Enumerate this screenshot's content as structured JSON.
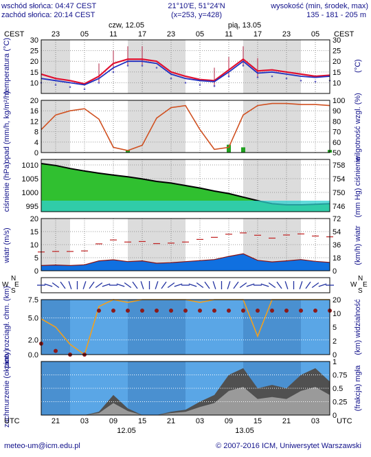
{
  "header": {
    "sunrise": "wschód słońca: 04:47 CEST",
    "sunset": "zachód słońca: 20:14 CEST",
    "coords": "21°10'E, 51°24'N",
    "grid": "(x=253, y=428)",
    "alt_title": "wysokość (min, środek, max)",
    "alt_values": "135 - 181 - 205 m",
    "tz_left": "CEST",
    "tz_right": "CEST",
    "day1": "czw, 12.05",
    "day2": "pią, 13.05",
    "top_hours": [
      "23",
      "05",
      "11",
      "17",
      "23",
      "05",
      "11",
      "17",
      "23",
      "05"
    ]
  },
  "footer": {
    "tz_left": "UTC",
    "tz_right": "UTC",
    "hours": [
      "21",
      "03",
      "09",
      "15",
      "21",
      "03",
      "09",
      "15",
      "21",
      "03"
    ],
    "date1": "12.05",
    "date2": "13.05",
    "email": "meteo-um@icm.edu.pl",
    "copyright": "© 2007-2016 ICM, Uniwersytet Warszawski"
  },
  "labels": {
    "temp_left": "temperatura (°C)",
    "temp_right": "(°C)",
    "precip_left": "opad (mm/h, kg/m²/h)",
    "precip_right": "wilgotność wzgl. (%)",
    "press_left": "ciśnienie (hPa)",
    "press_right": "(mm Hg) ciśnienie",
    "wind_left": "wiatr (m/s)",
    "wind_right": "(km/h) wiatr",
    "vis_left": "pion. rozciągł. chm. (km)",
    "vis_right": "(km) widzialność",
    "cloud_left": "zachmurzenie (oktanty)",
    "cloud_right": "(frakcja) mgła"
  },
  "chart_data": [
    {
      "type": "line",
      "panel": "temperature",
      "ylim": [
        5,
        30
      ],
      "yticks": [
        10,
        15,
        20,
        25,
        30
      ],
      "yticks_right": [
        10,
        15,
        20,
        25,
        30
      ],
      "x": [
        0,
        3,
        6,
        9,
        12,
        15,
        18,
        21,
        24,
        27,
        30,
        33,
        36,
        39,
        42,
        45,
        48,
        51,
        54,
        57,
        60
      ],
      "series": [
        {
          "key": "temp",
          "color": "#e01030",
          "values": [
            14,
            12,
            11,
            9.5,
            13,
            19,
            21,
            21,
            20,
            15,
            13,
            11.5,
            11,
            16,
            21,
            15.5,
            16,
            15,
            14,
            13,
            13.5
          ]
        },
        {
          "key": "dew",
          "color": "#2030c0",
          "values": [
            12,
            11,
            10,
            9,
            12,
            17,
            20,
            20,
            19,
            14,
            12,
            11,
            10.5,
            15,
            20,
            14.5,
            15,
            14,
            13,
            12.5,
            13
          ]
        }
      ]
    },
    {
      "type": "area",
      "panel": "precipitation_humidity",
      "ylim_left": [
        0,
        20
      ],
      "yticks_left": [
        0,
        4,
        8,
        12,
        16,
        20
      ],
      "ylim_right": [
        50,
        100
      ],
      "yticks_right": [
        50,
        60,
        70,
        80,
        90,
        100
      ],
      "x": [
        0,
        3,
        6,
        9,
        12,
        15,
        18,
        21,
        24,
        27,
        30,
        33,
        36,
        39,
        42,
        45,
        48,
        51,
        54,
        57,
        60
      ],
      "humidity": [
        72,
        86,
        90,
        92,
        82,
        55,
        52,
        57,
        83,
        93,
        95,
        72,
        53,
        55,
        86,
        95,
        97,
        97,
        96,
        96,
        95
      ],
      "precip": [
        0,
        0,
        0,
        0,
        0,
        0,
        1,
        0,
        0,
        0,
        0,
        0,
        0,
        3,
        2,
        0,
        0,
        0,
        0,
        0,
        1
      ]
    },
    {
      "type": "area",
      "panel": "pressure",
      "ylim_left": [
        993,
        1012
      ],
      "yticks_left": [
        995,
        1000,
        1005,
        1010
      ],
      "yticks_right": [
        746,
        750,
        754,
        758
      ],
      "x": [
        0,
        3,
        6,
        9,
        12,
        15,
        18,
        21,
        24,
        27,
        30,
        33,
        36,
        39,
        42,
        45,
        48,
        51,
        54,
        57,
        60
      ],
      "values": [
        1010.5,
        1009.8,
        1008.7,
        1007.8,
        1007.0,
        1006.3,
        1005.7,
        1004.9,
        1004.0,
        1003.4,
        1002.5,
        1001.6,
        1000.5,
        999.6,
        998.3,
        997.0,
        995.9,
        995.5,
        995.5,
        995.7,
        995.9
      ]
    },
    {
      "type": "area",
      "panel": "wind",
      "ylim_left": [
        0,
        20
      ],
      "yticks_left": [
        0,
        5,
        10,
        15,
        20
      ],
      "yticks_right": [
        0,
        18,
        36,
        54,
        72
      ],
      "x": [
        0,
        3,
        6,
        9,
        12,
        15,
        18,
        21,
        24,
        27,
        30,
        33,
        36,
        39,
        42,
        45,
        48,
        51,
        54,
        57,
        60
      ],
      "speed": [
        2,
        2.2,
        2,
        2.3,
        3.8,
        4.2,
        3.5,
        3.8,
        2.9,
        3.1,
        3.5,
        3.9,
        4.3,
        5.5,
        6.5,
        4,
        3.4,
        3.8,
        4.3,
        3.6,
        3.2
      ],
      "gusts": [
        7.2,
        7.4,
        7.4,
        7.6,
        10.3,
        11.8,
        11,
        11.2,
        10.4,
        10.6,
        11,
        12,
        12.8,
        14,
        14.5,
        13.6,
        12.5,
        13.7,
        14.1,
        13.3,
        13
      ]
    },
    {
      "type": "scatter",
      "panel": "visibility_cloud_extent",
      "ylim_left": [
        0,
        7.5
      ],
      "yticks_left": [
        0.0,
        2.0,
        5.0,
        7.5
      ],
      "yticks_left_labels": [
        "0.0",
        "2.0",
        "5.0",
        "7.5"
      ],
      "yticks_right": [
        0,
        2,
        5,
        10,
        20
      ],
      "x": [
        0,
        3,
        6,
        9,
        12,
        15,
        18,
        21,
        24,
        27,
        30,
        33,
        36,
        39,
        42,
        45,
        48,
        51,
        54,
        57,
        60
      ],
      "visibility_km": [
        8,
        5,
        1.5,
        0,
        15,
        20,
        18,
        20,
        20,
        20,
        20,
        18,
        20,
        20,
        20,
        3,
        20,
        20,
        20,
        20,
        20
      ],
      "cloud_extent_km": [
        1.5,
        0.5,
        0,
        0,
        6,
        6,
        6,
        6,
        6,
        6,
        6,
        6,
        6,
        6,
        6,
        6,
        6,
        6,
        6,
        6,
        6
      ]
    },
    {
      "type": "area",
      "panel": "clouds_fog",
      "ylim_left": [
        0,
        8
      ],
      "yticks_right": [
        0,
        0.25,
        0.5,
        0.75,
        1
      ],
      "yticks_right_labels": [
        "0",
        "0.25",
        "0.5",
        "0.75",
        "1"
      ],
      "x": [
        0,
        3,
        6,
        9,
        12,
        15,
        18,
        21,
        24,
        27,
        30,
        33,
        36,
        39,
        42,
        45,
        48,
        51,
        54,
        57,
        60
      ],
      "clouds": [
        0,
        0,
        0,
        0,
        0.5,
        3,
        1,
        0,
        0,
        0.5,
        0.8,
        2,
        3,
        6,
        7,
        4,
        4.5,
        4,
        6,
        7,
        5
      ]
    }
  ]
}
